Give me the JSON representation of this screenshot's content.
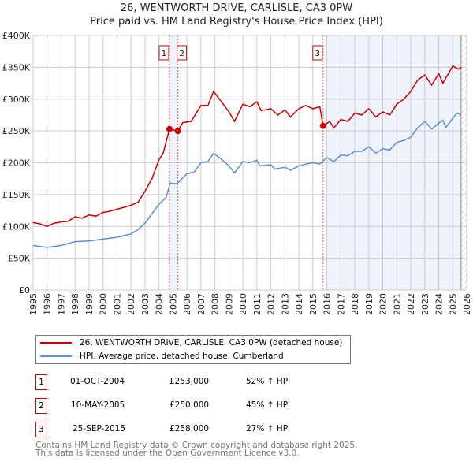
{
  "chart_data": {
    "type": "line",
    "title": "26, WENTWORTH DRIVE, CARLISLE, CA3 0PW",
    "subtitle": "Price paid vs. HM Land Registry's House Price Index (HPI)",
    "xlim": [
      1995,
      2026
    ],
    "ylim": [
      0,
      400000
    ],
    "y_ticks": [
      {
        "v": 0,
        "label": "£0"
      },
      {
        "v": 50000,
        "label": "£50K"
      },
      {
        "v": 100000,
        "label": "£100K"
      },
      {
        "v": 150000,
        "label": "£150K"
      },
      {
        "v": 200000,
        "label": "£200K"
      },
      {
        "v": 250000,
        "label": "£250K"
      },
      {
        "v": 300000,
        "label": "£300K"
      },
      {
        "v": 350000,
        "label": "£350K"
      },
      {
        "v": 400000,
        "label": "£400K"
      }
    ],
    "x_ticks": [
      "1995",
      "1996",
      "1997",
      "1998",
      "1999",
      "2000",
      "2001",
      "2002",
      "2003",
      "2004",
      "2005",
      "2006",
      "2007",
      "2008",
      "2009",
      "2010",
      "2011",
      "2012",
      "2013",
      "2014",
      "2015",
      "2016",
      "2017",
      "2018",
      "2019",
      "2020",
      "2021",
      "2022",
      "2023",
      "2024",
      "2025",
      "2026"
    ],
    "grid": true,
    "series": [
      {
        "name": "26, WENTWORTH DRIVE, CARLISLE, CA3 0PW (detached house)",
        "color": "#cc0000",
        "x": [
          1995,
          1995.5,
          1996,
          1996.5,
          1997,
          1997.5,
          1998,
          1998.5,
          1999,
          1999.5,
          2000,
          2000.5,
          2001,
          2001.5,
          2002,
          2002.5,
          2003,
          2003.5,
          2004,
          2004.3,
          2004.75,
          2005.35,
          2005.7,
          2006.3,
          2007,
          2007.5,
          2007.9,
          2008.5,
          2009,
          2009.4,
          2010,
          2010.5,
          2011,
          2011.3,
          2012,
          2012.5,
          2013,
          2013.4,
          2014,
          2014.5,
          2015,
          2015.5,
          2015.73,
          2016.2,
          2016.5,
          2017,
          2017.5,
          2018,
          2018.5,
          2019,
          2019.5,
          2020,
          2020.5,
          2021,
          2021.5,
          2022,
          2022.5,
          2023,
          2023.5,
          2024,
          2024.3,
          2025,
          2025.4,
          2025.6
        ],
        "y": [
          106000,
          104000,
          100000,
          105000,
          107000,
          108000,
          115000,
          113000,
          118000,
          116000,
          122000,
          124000,
          127000,
          130000,
          133000,
          138000,
          155000,
          175000,
          205000,
          215000,
          253000,
          250000,
          263000,
          265000,
          290000,
          290000,
          312000,
          295000,
          280000,
          265000,
          292000,
          288000,
          296000,
          282000,
          285000,
          275000,
          283000,
          272000,
          285000,
          290000,
          285000,
          288000,
          258000,
          265000,
          255000,
          268000,
          265000,
          278000,
          275000,
          285000,
          272000,
          280000,
          275000,
          292000,
          300000,
          312000,
          330000,
          338000,
          322000,
          340000,
          325000,
          352000,
          347000,
          350000
        ]
      },
      {
        "name": "HPI: Average price, detached house, Cumberland",
        "color": "#5b8fd6",
        "x": [
          1995,
          1996,
          1997,
          1998,
          1999,
          2000,
          2001,
          2002,
          2002.5,
          2003,
          2003.5,
          2004,
          2004.5,
          2004.8,
          2005.3,
          2006,
          2006.5,
          2007,
          2007.5,
          2007.9,
          2008.5,
          2009,
          2009.4,
          2010,
          2010.5,
          2011,
          2011.2,
          2012,
          2012.3,
          2013,
          2013.4,
          2014,
          2014.5,
          2015,
          2015.5,
          2016,
          2016.5,
          2017,
          2017.5,
          2018,
          2018.5,
          2019,
          2019.5,
          2020,
          2020.5,
          2021,
          2021.5,
          2022,
          2022.5,
          2023,
          2023.5,
          2024,
          2024.3,
          2024.5,
          2025,
          2025.3,
          2025.6
        ],
        "y": [
          70000,
          67000,
          70000,
          76000,
          77000,
          80000,
          83000,
          88000,
          95000,
          105000,
          120000,
          135000,
          145000,
          168000,
          167000,
          183000,
          185000,
          200000,
          202000,
          215000,
          205000,
          195000,
          184000,
          202000,
          200000,
          204000,
          195000,
          197000,
          190000,
          193000,
          188000,
          195000,
          198000,
          200000,
          198000,
          208000,
          202000,
          212000,
          211000,
          218000,
          218000,
          225000,
          215000,
          222000,
          220000,
          232000,
          235000,
          240000,
          255000,
          265000,
          253000,
          262000,
          267000,
          255000,
          270000,
          278000,
          275000
        ]
      }
    ],
    "sales": [
      {
        "label": "1",
        "x": 2004.75,
        "y": 253000
      },
      {
        "label": "2",
        "x": 2005.35,
        "y": 250000
      },
      {
        "label": "3",
        "x": 2015.73,
        "y": 258000
      }
    ],
    "forecast_from": 2025.6
  },
  "legend": [
    "26, WENTWORTH DRIVE, CARLISLE, CA3 0PW (detached house)",
    "HPI: Average price, detached house, Cumberland"
  ],
  "table": [
    {
      "num": "1",
      "date": "01-OCT-2004",
      "price": "£253,000",
      "hpi": "52% ↑ HPI"
    },
    {
      "num": "2",
      "date": "10-MAY-2005",
      "price": "£250,000",
      "hpi": "45% ↑ HPI"
    },
    {
      "num": "3",
      "date": "25-SEP-2015",
      "price": "£258,000",
      "hpi": "27% ↑ HPI"
    }
  ],
  "footer": [
    "Contains HM Land Registry data © Crown copyright and database right 2025.",
    "This data is licensed under the Open Government Licence v3.0."
  ]
}
